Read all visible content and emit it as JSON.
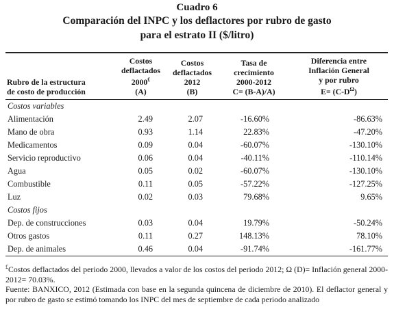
{
  "title": {
    "line1": "Cuadro 6",
    "line2": "Comparación del INPC y los deflactores por rubro de gasto",
    "line3": "para el estrato II ($/litro)"
  },
  "table": {
    "headers": {
      "col0": [
        "Rubro de la estructura",
        "de costo de producción"
      ],
      "col1": [
        "Costos",
        "deflactados",
        "2000",
        "(A)"
      ],
      "col1_sup": "£",
      "col2": [
        "Costos",
        "deflactados",
        "2012",
        "(B)"
      ],
      "col3": [
        "Tasa de",
        "crecimiento",
        "2000-2012",
        "C= (B-A)/A)"
      ],
      "col4": [
        "Diferencia entre",
        "Inflación  General",
        "y por rubro",
        "E= (C-D"
      ],
      "col4_sup": "Ω",
      "col4_end": ")"
    },
    "sections": [
      {
        "label": "Costos variables",
        "rows": [
          {
            "name": "Alimentación",
            "a": "2.49",
            "b": "2.07",
            "c": "-16.60%",
            "e": "-86.63%"
          },
          {
            "name": "Mano de obra",
            "a": "0.93",
            "b": "1.14",
            "c": "22.83%",
            "e": "-47.20%"
          },
          {
            "name": "Medicamentos",
            "a": "0.09",
            "b": "0.04",
            "c": "-60.07%",
            "e": "-130.10%"
          },
          {
            "name": "Servicio reproductivo",
            "a": "0.06",
            "b": "0.04",
            "c": "-40.11%",
            "e": "-110.14%"
          },
          {
            "name": "Agua",
            "a": "0.05",
            "b": "0.02",
            "c": "-60.07%",
            "e": "-130.10%"
          },
          {
            "name": "Combustible",
            "a": "0.11",
            "b": "0.05",
            "c": "-57.22%",
            "e": "-127.25%"
          },
          {
            "name": "Luz",
            "a": "0.02",
            "b": "0.03",
            "c": "79.68%",
            "e": "9.65%"
          }
        ]
      },
      {
        "label": "Costos fijos",
        "rows": [
          {
            "name": "Dep. de construcciones",
            "a": "0.03",
            "b": "0.04",
            "c": "19.79%",
            "e": "-50.24%"
          },
          {
            "name": "Otros gastos",
            "a": "0.11",
            "b": "0.27",
            "c": "148.13%",
            "e": "78.10%"
          },
          {
            "name": "Dep. de animales",
            "a": "0.46",
            "b": "0.04",
            "c": "-91.74%",
            "e": "-161.77%"
          }
        ]
      }
    ]
  },
  "notes": {
    "note1_sup": "£",
    "note1": "Costos deflactados del periodo 2000, llevados a valor de los costos del periodo 2012; Ω (D)= Inflación general 2000-2012= 70.03%.",
    "note2": "Fuente: BANXICO, 2012 (Estimada con base en la segunda quincena de diciembre de 2010). El deflactor general y por rubro de gasto se estimó tomando los INPC del mes de septiembre de cada periodo analizado"
  }
}
